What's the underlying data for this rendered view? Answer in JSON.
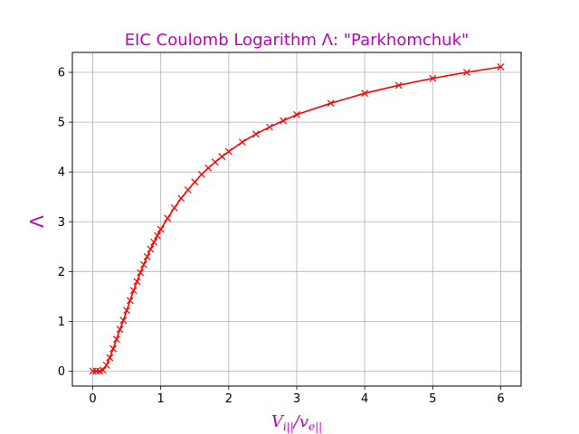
{
  "chart_data": {
    "type": "line",
    "title": "EIC Coulomb Logarithm Λ: \"Parkhomchuk\"",
    "xlabel": "V_{i||}/v_{e||}",
    "ylabel": "Λ",
    "xlim": [
      -0.3,
      6.3
    ],
    "ylim": [
      -0.3,
      6.4
    ],
    "xticks": [
      0,
      1,
      2,
      3,
      4,
      5,
      6
    ],
    "yticks": [
      0,
      1,
      2,
      3,
      4,
      5,
      6
    ],
    "grid": true,
    "colors": {
      "title": "#bf00bf",
      "labels": "#bf00bf",
      "line": "#ff0000",
      "grid": "#b0b0b0"
    },
    "series": [
      {
        "marker": "x",
        "x": [
          0.0,
          0.05,
          0.1,
          0.15,
          0.2,
          0.25,
          0.3,
          0.35,
          0.4,
          0.45,
          0.5,
          0.55,
          0.6,
          0.65,
          0.7,
          0.75,
          0.8,
          0.85,
          0.9,
          0.95,
          1.0,
          1.1,
          1.2,
          1.3,
          1.4,
          1.5,
          1.6,
          1.7,
          1.8,
          1.9,
          2.0,
          2.2,
          2.4,
          2.6,
          2.8,
          3.0,
          3.5,
          4.0,
          4.5,
          5.0,
          5.5,
          6.0
        ],
        "y": [
          0.0,
          0.0,
          0.0,
          0.02,
          0.12,
          0.27,
          0.45,
          0.64,
          0.84,
          1.02,
          1.22,
          1.42,
          1.62,
          1.8,
          1.98,
          2.14,
          2.3,
          2.45,
          2.59,
          2.72,
          2.85,
          3.07,
          3.28,
          3.47,
          3.64,
          3.8,
          3.95,
          4.08,
          4.2,
          4.31,
          4.41,
          4.6,
          4.76,
          4.9,
          5.03,
          5.15,
          5.38,
          5.58,
          5.74,
          5.88,
          6.0,
          6.11
        ]
      }
    ]
  }
}
